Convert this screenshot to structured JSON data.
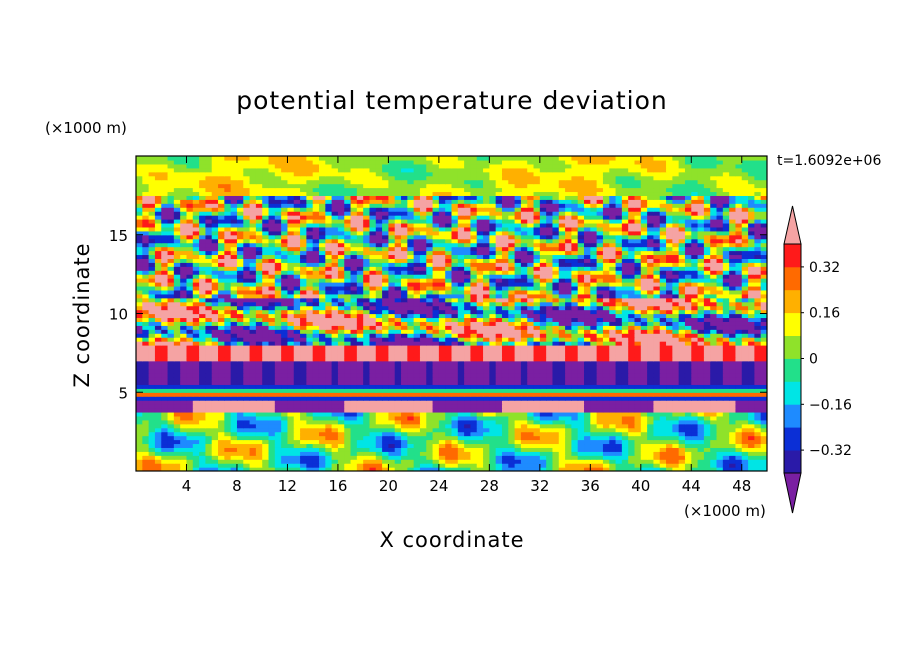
{
  "chart_data": {
    "type": "heatmap",
    "title": "potential temperature deviation",
    "xlabel": "X coordinate",
    "ylabel": "Z coordinate",
    "x_unit": "(×1000 m)",
    "y_unit": "(×1000 m)",
    "time_label": "t=1.6092e+06",
    "xlim": [
      0,
      50
    ],
    "ylim": [
      0,
      20
    ],
    "x_ticks": [
      "4",
      "8",
      "12",
      "16",
      "20",
      "24",
      "28",
      "32",
      "36",
      "40",
      "44",
      "48"
    ],
    "y_ticks": [
      "5",
      "10",
      "15"
    ],
    "colorbar": {
      "tick_labels": [
        "0.32",
        "0.16",
        "0",
        "−0.16",
        "−0.32"
      ],
      "levels": [
        -0.4,
        -0.32,
        -0.24,
        -0.16,
        -0.08,
        0,
        0.08,
        0.16,
        0.24,
        0.32,
        0.4
      ],
      "colors": [
        "#7a1fa2",
        "#2a1aa8",
        "#0b2fd6",
        "#1e8bff",
        "#00e5e5",
        "#22e08a",
        "#8fe22a",
        "#ffff00",
        "#ffb000",
        "#ff6a00",
        "#ff1a1a",
        "#f5a3a3"
      ],
      "extend": "both"
    },
    "bands": [
      {
        "z": [
          17.5,
          20
        ],
        "pattern": "smooth green / light green / yellow-green",
        "amplitude": "low"
      },
      {
        "z": [
          11,
          17.5
        ],
        "pattern": "turbulent eddies alternating purple and pink-red",
        "amplitude": "high"
      },
      {
        "z": [
          8,
          11
        ],
        "pattern": "layer of pink (positive) with thick purple (negative) streaks",
        "amplitude": "high"
      },
      {
        "z": [
          5.5,
          8
        ],
        "pattern": "pink layer above a purple layer",
        "amplitude": "high"
      },
      {
        "z": [
          4.5,
          5.5
        ],
        "pattern": "thin stacked stripes of orange, yellow, green",
        "amplitude": "medium"
      },
      {
        "z": [
          3.7,
          4.5
        ],
        "pattern": "purple lens-shaped blobs on a pink layer",
        "amplitude": "high"
      },
      {
        "z": [
          0,
          3.7
        ],
        "pattern": "gravity-wave plumes: cyan, green, yellow, orange, blue",
        "amplitude": "medium"
      }
    ]
  }
}
